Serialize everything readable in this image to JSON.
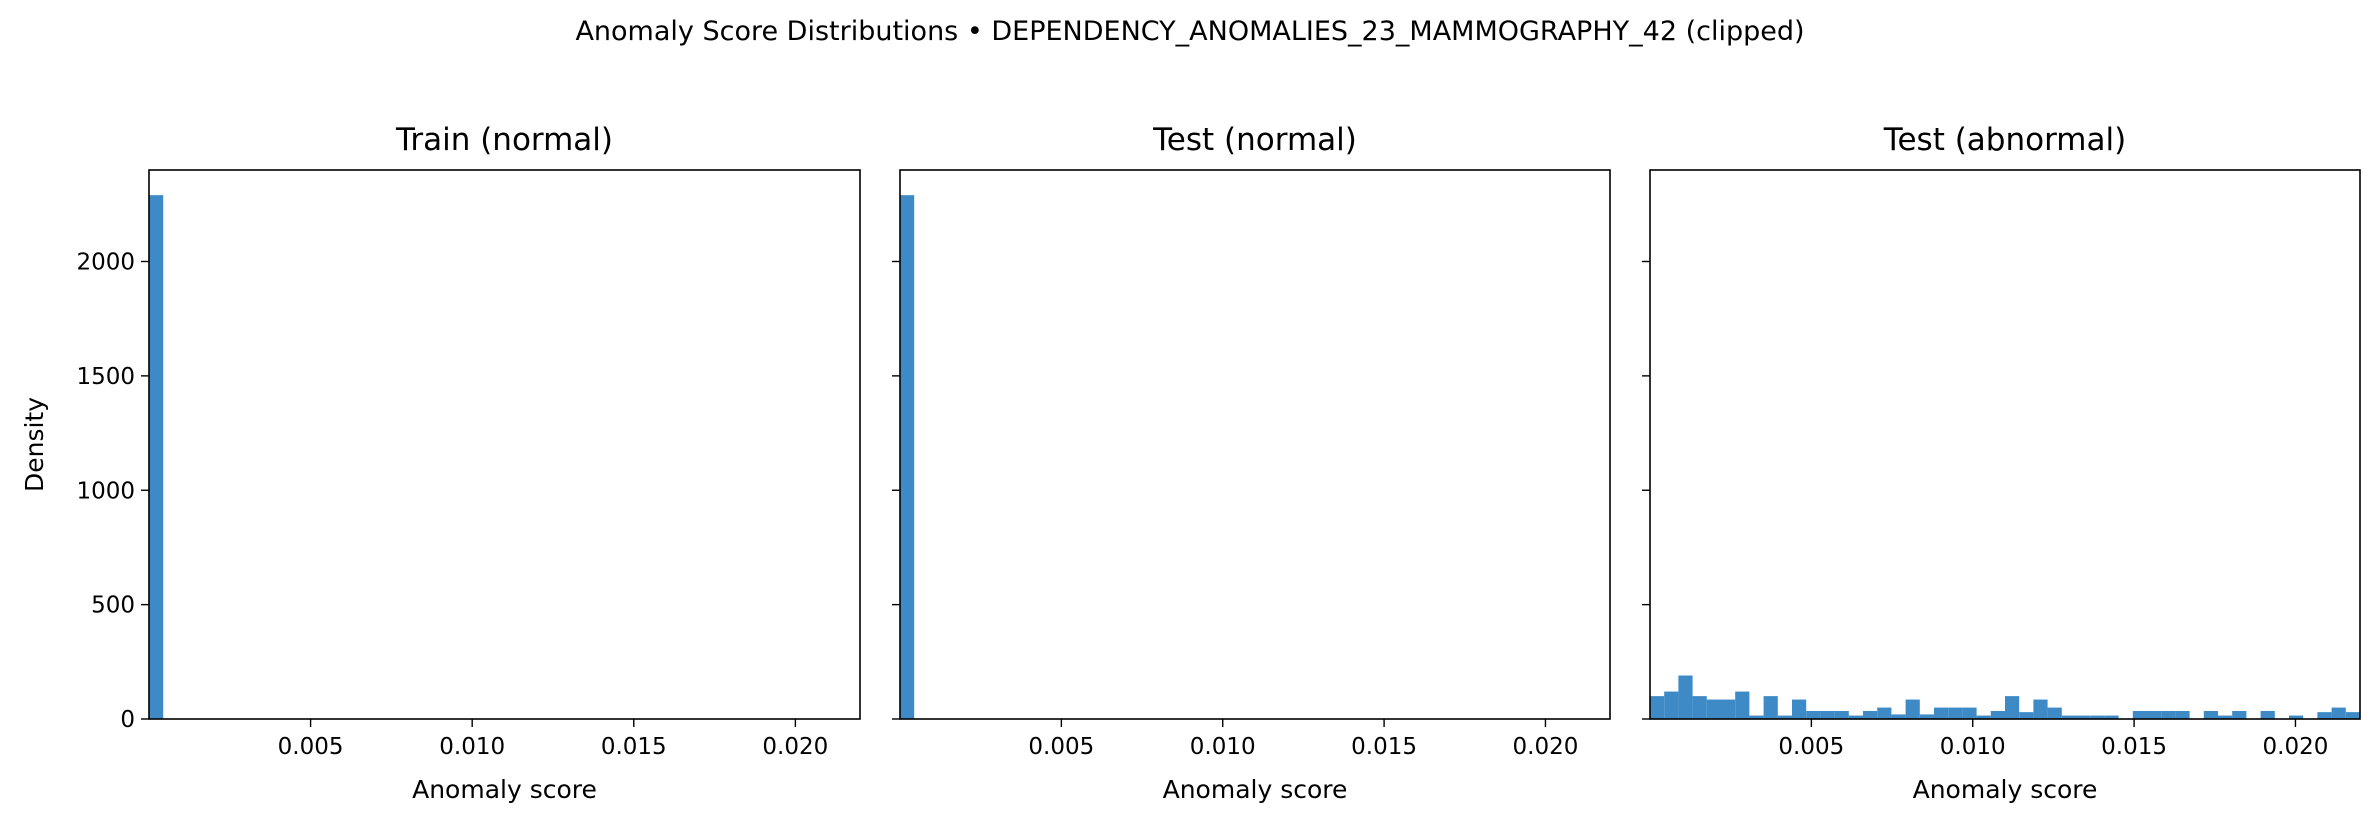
{
  "suptitle": "Anomaly Score Distributions • DEPENDENCY_ANOMALIES_23_MAMMOGRAPHY_42 (clipped)",
  "chart_data": [
    {
      "type": "bar",
      "title": "Train (normal)",
      "xlabel": "Anomaly score",
      "ylabel": "Density",
      "xlim": [
        0.0,
        0.022
      ],
      "ylim": [
        0,
        2400
      ],
      "xticks": [
        0.005,
        0.01,
        0.015,
        0.02
      ],
      "xtick_labels": [
        "0.005",
        "0.010",
        "0.015",
        "0.020"
      ],
      "yticks": [
        0,
        500,
        1000,
        1500,
        2000
      ],
      "ytick_labels": [
        "0",
        "500",
        "1000",
        "1500",
        "2000"
      ],
      "color": "#3d8ac6",
      "bins": [
        {
          "x0": 0.0,
          "x1": 0.00044,
          "value": 2290
        }
      ]
    },
    {
      "type": "bar",
      "title": "Test (normal)",
      "xlabel": "Anomaly score",
      "ylabel": "",
      "xlim": [
        0.0,
        0.022
      ],
      "ylim": [
        0,
        2400
      ],
      "xticks": [
        0.005,
        0.01,
        0.015,
        0.02
      ],
      "xtick_labels": [
        "0.005",
        "0.010",
        "0.015",
        "0.020"
      ],
      "yticks": [
        0,
        500,
        1000,
        1500,
        2000
      ],
      "ytick_labels": [],
      "color": "#3d8ac6",
      "bins": [
        {
          "x0": 0.0,
          "x1": 0.00044,
          "value": 2290
        }
      ]
    },
    {
      "type": "bar",
      "title": "Test (abnormal)",
      "xlabel": "Anomaly score",
      "ylabel": "",
      "xlim": [
        0.0,
        0.022
      ],
      "ylim": [
        0,
        2400
      ],
      "xticks": [
        0.005,
        0.01,
        0.015,
        0.02
      ],
      "xtick_labels": [
        "0.005",
        "0.010",
        "0.015",
        "0.020"
      ],
      "yticks": [
        0,
        500,
        1000,
        1500,
        2000
      ],
      "ytick_labels": [],
      "color": "#3d8ac6",
      "bin_width": 0.00044,
      "values": [
        100,
        120,
        190,
        100,
        85,
        85,
        120,
        15,
        100,
        15,
        85,
        35,
        35,
        35,
        15,
        35,
        50,
        20,
        85,
        20,
        50,
        50,
        50,
        15,
        35,
        100,
        30,
        85,
        50,
        15,
        15,
        15,
        15,
        0,
        35,
        35,
        35,
        35,
        0,
        35,
        15,
        35,
        0,
        35,
        0,
        15,
        0,
        30,
        50,
        30
      ]
    }
  ]
}
